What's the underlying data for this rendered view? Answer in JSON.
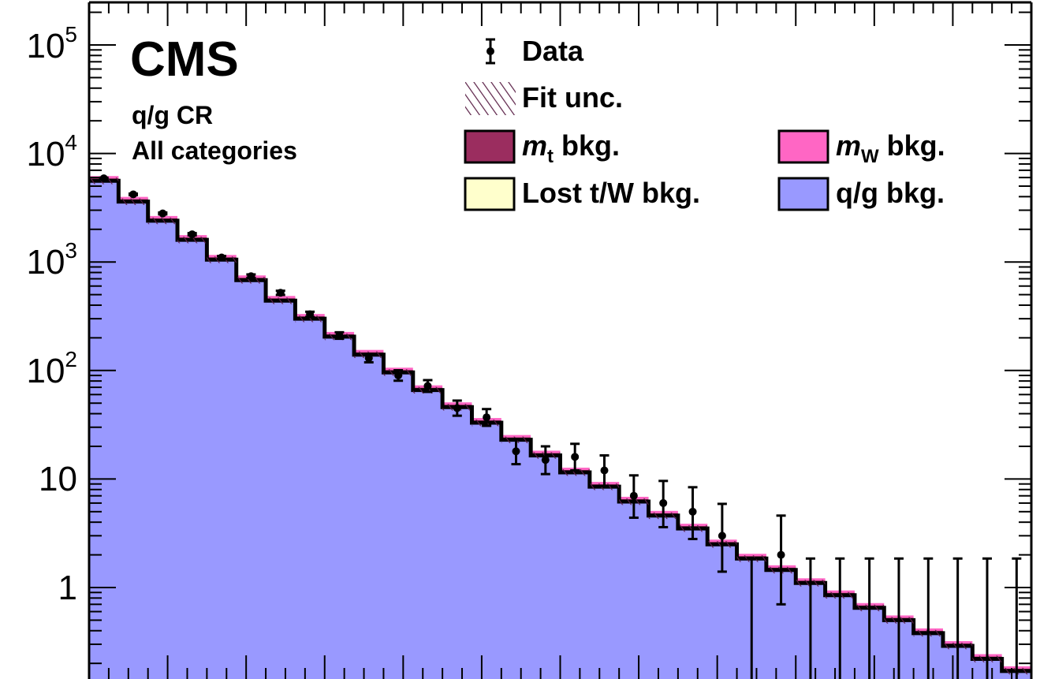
{
  "chart_data": {
    "type": "bar",
    "yscale": "log",
    "ylim": [
      0.15,
      200000
    ],
    "y_tick_labels": [
      {
        "base": "10",
        "exp": "5",
        "value": 100000
      },
      {
        "base": "10",
        "exp": "4",
        "value": 10000
      },
      {
        "base": "10",
        "exp": "3",
        "value": 1000
      },
      {
        "base": "10",
        "exp": "2",
        "value": 100
      },
      {
        "base": "",
        "exp": "",
        "text": "10",
        "value": 10
      },
      {
        "base": "",
        "exp": "",
        "text": "1",
        "value": 1
      }
    ],
    "experiment_label": "CMS",
    "region_label": "q/g CR",
    "category_label": "All categories",
    "legend": {
      "data": "Data",
      "fit_unc": "Fit unc.",
      "mt_main": "m",
      "mt_sub": "t",
      "mt_suffix": " bkg.",
      "mw_main": "m",
      "mw_sub": "W",
      "mw_suffix": " bkg.",
      "lost": "Lost t/W bkg.",
      "qg": "q/g bkg."
    },
    "colors": {
      "qg": "#9999ff",
      "mt": "#9b2d5f",
      "mw": "#ff66c4",
      "lost": "#ffffcc",
      "unc": "#5a1f46",
      "data": "#000000"
    },
    "bins": 32,
    "prediction": [
      5600,
      3600,
      2400,
      1600,
      1050,
      680,
      440,
      300,
      205,
      140,
      96,
      66,
      46,
      33,
      23,
      16.5,
      11.5,
      8.5,
      6.2,
      4.6,
      3.5,
      2.5,
      1.85,
      1.45,
      1.1,
      0.85,
      0.65,
      0.5,
      0.38,
      0.29,
      0.22,
      0.17
    ],
    "data": [
      5900,
      4200,
      2800,
      1800,
      1100,
      740,
      520,
      330,
      210,
      130,
      90,
      72,
      45,
      37,
      18,
      15,
      16,
      12,
      7,
      6,
      5,
      3,
      0,
      2,
      0,
      0,
      0,
      0,
      0,
      0,
      0,
      0
    ],
    "data_err_up": [
      80,
      65,
      55,
      45,
      35,
      28,
      23,
      18,
      15,
      12,
      10.5,
      9.5,
      7.8,
      7.1,
      5.4,
      5,
      5.1,
      4.5,
      3.8,
      3.6,
      3.4,
      2.9,
      1.85,
      2.6,
      1.85,
      1.85,
      1.85,
      1.85,
      1.85,
      1.85,
      1.85,
      1.85
    ],
    "data_err_down": [
      77,
      65,
      53,
      42,
      33,
      27,
      23,
      18,
      14,
      11,
      9.5,
      8.5,
      6.7,
      6.1,
      4.3,
      3.9,
      4.0,
      3.4,
      2.6,
      2.4,
      2.2,
      1.6,
      0,
      1.3,
      0,
      0,
      0,
      0,
      0,
      0,
      0,
      0
    ]
  }
}
